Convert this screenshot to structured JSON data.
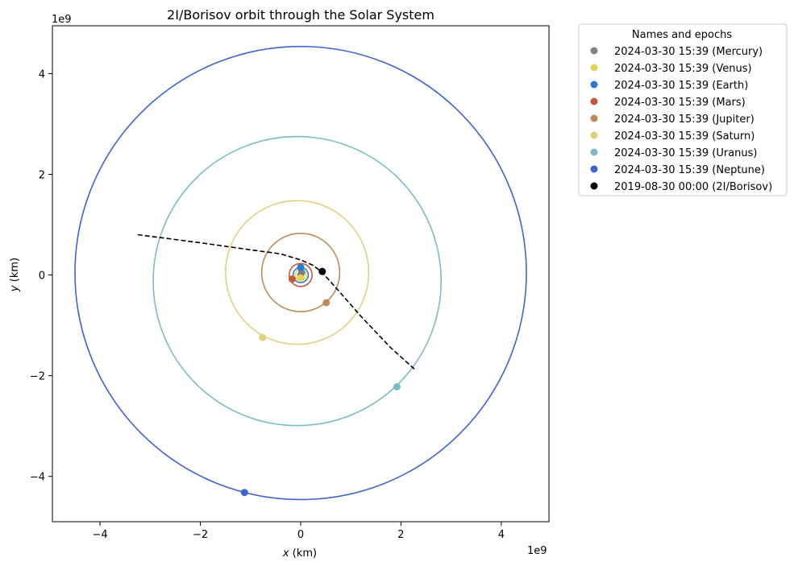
{
  "chart_data": {
    "type": "line",
    "title": "2I/Borisov orbit through the Solar System",
    "xlabel_italic": "x",
    "xlabel_unit": " (km)",
    "ylabel_italic": "y",
    "ylabel_unit": " (km)",
    "x_offset_text": "1e9",
    "y_offset_text": "1e9",
    "xlim": [
      -4.95,
      4.95
    ],
    "ylim": [
      -4.9,
      4.95
    ],
    "xticks": [
      -4,
      -2,
      0,
      2,
      4
    ],
    "yticks": [
      -4,
      -2,
      0,
      2,
      4
    ],
    "xtick_labels": [
      "−4",
      "−2",
      "0",
      "2",
      "4"
    ],
    "ytick_labels": [
      "−4",
      "−2",
      "0",
      "2",
      "4"
    ],
    "grid": false,
    "legend": {
      "title": "Names and epochs",
      "placement": "outside-right-top"
    },
    "series": [
      {
        "name": "2024-03-30 15:39 (Mercury)",
        "color": "#848278",
        "orbit": {
          "cx": 0.0,
          "cy": 0.0,
          "rx": 0.058,
          "ry": 0.058
        },
        "point": [
          0.02,
          0.05
        ]
      },
      {
        "name": "2024-03-30 15:39 (Venus)",
        "color": "#e3d556",
        "orbit": {
          "cx": 0.0,
          "cy": 0.0,
          "rx": 0.108,
          "ry": 0.108
        },
        "point": [
          0.0,
          -0.06
        ]
      },
      {
        "name": "2024-03-30 15:39 (Earth)",
        "color": "#2a7ad0",
        "orbit": {
          "cx": 0.0,
          "cy": 0.0,
          "rx": 0.15,
          "ry": 0.15
        },
        "point": [
          0.0,
          0.15
        ]
      },
      {
        "name": "2024-03-30 15:39 (Mars)",
        "color": "#c45a37",
        "orbit": {
          "cx": 0.0,
          "cy": 0.0,
          "rx": 0.228,
          "ry": 0.228
        },
        "point": [
          -0.17,
          -0.08
        ]
      },
      {
        "name": "2024-03-30 15:39 (Jupiter)",
        "color": "#c08a58",
        "orbit": {
          "cx": 0.0,
          "cy": 0.05,
          "rx": 0.778,
          "ry": 0.778
        },
        "point": [
          0.51,
          -0.55
        ]
      },
      {
        "name": "2024-03-30 15:39 (Saturn)",
        "color": "#e2cf80",
        "orbit": {
          "cx": -0.07,
          "cy": 0.05,
          "rx": 1.427,
          "ry": 1.427
        },
        "point": [
          -0.76,
          -1.24
        ]
      },
      {
        "name": "2024-03-30 15:39 (Uranus)",
        "color": "#7abcc4",
        "orbit": {
          "cx": -0.07,
          "cy": -0.12,
          "rx": 2.87,
          "ry": 2.87
        },
        "point": [
          1.92,
          -2.22
        ]
      },
      {
        "name": "2024-03-30 15:39 (Neptune)",
        "color": "#3f63cf",
        "orbit": {
          "cx": 0.0,
          "cy": 0.04,
          "rx": 4.5,
          "ry": 4.5
        },
        "point": [
          -1.12,
          -4.32
        ]
      },
      {
        "name": "2019-08-30 00:00 (2I/Borisov)",
        "color": "#000000",
        "dashed": true,
        "trajectory": [
          [
            -3.25,
            0.8
          ],
          [
            -2.0,
            0.64
          ],
          [
            -1.0,
            0.5
          ],
          [
            -0.4,
            0.42
          ],
          [
            0.0,
            0.3
          ],
          [
            0.25,
            0.19
          ],
          [
            0.42,
            0.06
          ],
          [
            0.7,
            -0.25
          ],
          [
            1.2,
            -0.82
          ],
          [
            1.8,
            -1.45
          ],
          [
            2.28,
            -1.88
          ]
        ],
        "point": [
          0.43,
          0.07
        ]
      }
    ]
  }
}
